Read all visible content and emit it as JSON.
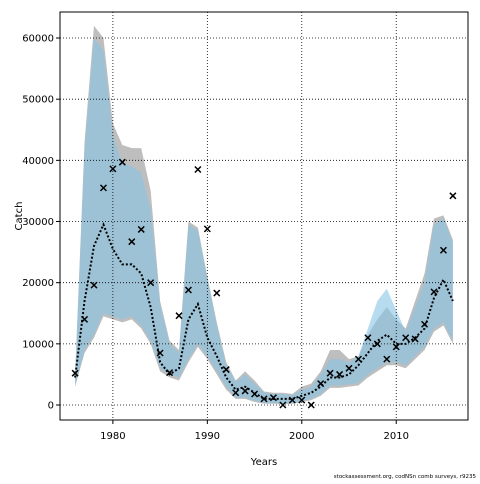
{
  "chart_data": {
    "type": "band-line",
    "xlabel": "Years",
    "ylabel": "Catch",
    "footnote": "stockassessment.org, codNSn  comb surveys, r9235",
    "x": [
      1976,
      1977,
      1978,
      1979,
      1980,
      1981,
      1982,
      1983,
      1984,
      1985,
      1986,
      1987,
      1988,
      1989,
      1990,
      1991,
      1992,
      1993,
      1994,
      1995,
      1996,
      1997,
      1998,
      1999,
      2000,
      2001,
      2002,
      2003,
      2004,
      2005,
      2006,
      2007,
      2008,
      2009,
      2010,
      2011,
      2012,
      2013,
      2014,
      2015,
      2016
    ],
    "xlim": [
      1974.4,
      2017.6
    ],
    "xticks": [
      1980,
      1990,
      2000,
      2010
    ],
    "ylim": [
      -2450,
      64250
    ],
    "yticks": [
      0,
      10000,
      20000,
      30000,
      40000,
      50000,
      60000
    ],
    "grid": true,
    "bands": [
      {
        "color": "#bebebe",
        "upper": [
          5000,
          43000,
          62000,
          60000,
          46000,
          42500,
          42000,
          42000,
          35000,
          17000,
          10500,
          9000,
          30000,
          29000,
          21000,
          13500,
          7000,
          4000,
          5500,
          4000,
          2200,
          2000,
          2000,
          1800,
          3000,
          3500,
          5500,
          9000,
          9000,
          7500,
          8000,
          11500,
          14000,
          16000,
          14000,
          12500,
          17000,
          21500,
          30500,
          31000,
          27000
        ],
        "lower": [
          3000,
          8500,
          11000,
          14500,
          14000,
          13500,
          14000,
          12500,
          10000,
          5500,
          4500,
          4000,
          7000,
          9500,
          7500,
          5000,
          2500,
          1000,
          1000,
          500,
          200,
          200,
          100,
          200,
          500,
          800,
          1500,
          2800,
          2800,
          3000,
          3200,
          4500,
          5500,
          6500,
          6500,
          6000,
          7500,
          9000,
          12000,
          13000,
          10000
        ]
      },
      {
        "color": "#87c4e6",
        "upper": [
          4800,
          42000,
          60000,
          58000,
          44000,
          39500,
          39000,
          38000,
          32000,
          16500,
          10000,
          8500,
          29500,
          28500,
          20500,
          13000,
          6500,
          3800,
          5000,
          3500,
          2000,
          1800,
          1800,
          1600,
          2500,
          3000,
          5000,
          7500,
          7500,
          7000,
          8000,
          12500,
          17000,
          19000,
          15500,
          12000,
          16000,
          20000,
          29500,
          30500,
          26500
        ],
        "lower": [
          3200,
          9000,
          11500,
          15000,
          14500,
          14000,
          14500,
          13000,
          10500,
          6000,
          5000,
          4500,
          7500,
          10000,
          8000,
          5500,
          3000,
          1200,
          1200,
          700,
          300,
          300,
          200,
          300,
          600,
          1000,
          1800,
          3200,
          3200,
          3400,
          3600,
          5000,
          6000,
          7000,
          7000,
          6500,
          8000,
          9500,
          12500,
          13500,
          10500
        ]
      }
    ],
    "series": [
      {
        "color": "#000000",
        "style": "dotted",
        "values": [
          4500,
          17000,
          26000,
          29500,
          25500,
          23000,
          23000,
          21500,
          16000,
          7000,
          5000,
          6000,
          14000,
          16500,
          11000,
          8000,
          4500,
          2500,
          3000,
          2000,
          1000,
          1000,
          1000,
          1000,
          1500,
          2000,
          3000,
          4500,
          4500,
          5000,
          6500,
          8500,
          10500,
          11500,
          10000,
          10000,
          11000,
          12500,
          17500,
          20500,
          17000
        ]
      },
      {
        "color": "#000000",
        "style": "cross",
        "values": [
          5200,
          14000,
          19600,
          35500,
          38600,
          39700,
          26700,
          28700,
          20000,
          8500,
          5300,
          14600,
          18800,
          38500,
          28800,
          18300,
          5800,
          2000,
          2300,
          1800,
          1000,
          1200,
          0,
          800,
          800,
          0,
          3500,
          5200,
          5000,
          6000,
          7500,
          11000,
          10000,
          7500,
          9500,
          11000,
          10800,
          13200,
          18500,
          25300,
          34200
        ]
      }
    ]
  }
}
